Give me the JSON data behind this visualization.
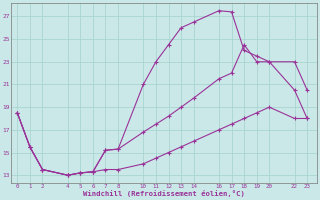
{
  "xlabel": "Windchill (Refroidissement éolien,°C)",
  "background_color": "#cbe8e8",
  "grid_color": "#a8d5d0",
  "line_color": "#993399",
  "curve1_x": [
    0,
    1,
    2,
    4,
    5,
    6,
    7,
    8,
    10,
    11,
    12,
    13,
    14,
    16,
    17,
    18,
    19,
    20,
    22,
    23
  ],
  "curve1_y": [
    18.5,
    15.5,
    13.5,
    13.0,
    13.2,
    13.3,
    15.2,
    15.3,
    21.0,
    23.0,
    24.5,
    26.0,
    26.5,
    27.5,
    27.4,
    24.0,
    23.5,
    23.0,
    20.5,
    18.0
  ],
  "curve2_x": [
    0,
    1,
    2,
    4,
    5,
    6,
    7,
    8,
    10,
    11,
    12,
    13,
    14,
    16,
    17,
    18,
    19,
    20,
    22,
    23
  ],
  "curve2_y": [
    18.5,
    15.5,
    13.5,
    13.0,
    13.2,
    13.3,
    15.2,
    15.3,
    16.8,
    17.5,
    18.2,
    19.0,
    19.8,
    21.5,
    22.0,
    24.5,
    23.0,
    23.0,
    23.0,
    20.5
  ],
  "curve3_x": [
    0,
    1,
    2,
    4,
    5,
    6,
    7,
    8,
    10,
    11,
    12,
    13,
    14,
    16,
    17,
    18,
    19,
    20,
    22,
    23
  ],
  "curve3_y": [
    18.5,
    15.5,
    13.5,
    13.0,
    13.2,
    13.3,
    13.5,
    13.5,
    14.0,
    14.5,
    15.0,
    15.5,
    16.0,
    17.0,
    17.5,
    18.0,
    18.5,
    19.0,
    18.0,
    18.0
  ],
  "xtick_positions": [
    0,
    1,
    2,
    4,
    5,
    6,
    7,
    8,
    10,
    11,
    12,
    13,
    14,
    16,
    17,
    18,
    19,
    20,
    22,
    23
  ],
  "ytick_positions": [
    13,
    15,
    17,
    19,
    21,
    23,
    25,
    27
  ],
  "xlim": [
    -0.5,
    23.8
  ],
  "ylim": [
    12.3,
    28.2
  ],
  "figsize": [
    3.2,
    2.0
  ],
  "dpi": 100
}
